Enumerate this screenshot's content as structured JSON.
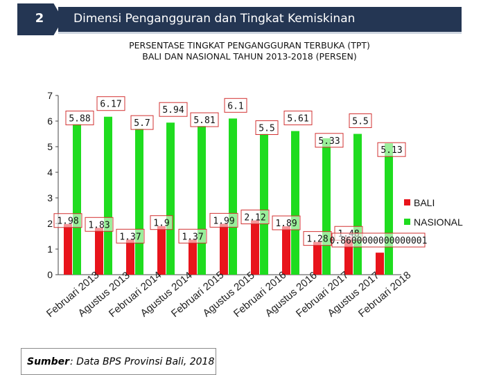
{
  "header": {
    "number": "2",
    "title": "Dimensi Pengangguran dan Tingkat Kemiskinan"
  },
  "source": {
    "label": "Sumber",
    "text": ": Data BPS Provinsi Bali, 2018"
  },
  "colors": {
    "banner": "#243653",
    "bali": "#e8141b",
    "nasional": "#1fdc1f",
    "label_border": "#d23030"
  },
  "chart_data": {
    "type": "bar",
    "title": "PERSENTASE TINGKAT PENGANGGURAN TERBUKA (TPT) BALI DAN NASIONAL TAHUN 2013-2018 (PERSEN)",
    "title_lines": [
      "PERSENTASE TINGKAT PENGANGGURAN TERBUKA (TPT)",
      "BALI DAN NASIONAL TAHUN 2013-2018 (PERSEN)"
    ],
    "categories": [
      "Februari 2013",
      "Agustus 2013",
      "Februari 2014",
      "Agustus 2014",
      "Februari 2015",
      "Agustus 2015",
      "Februari 2016",
      "Agustus 2016",
      "Februari 2017",
      "Agustus 2017",
      "Februari 2018"
    ],
    "series": [
      {
        "name": "BALI",
        "color": "#e8141b",
        "values": [
          1.98,
          1.83,
          1.37,
          1.9,
          1.37,
          1.99,
          2.12,
          1.89,
          1.28,
          1.48,
          0.8600000000000001
        ],
        "labels": [
          "1.98",
          "1.83",
          "1.37",
          "1.9",
          "1.37",
          "1.99",
          "2.12",
          "1.89",
          "1.28",
          "1.48",
          "0.8600000000000001"
        ]
      },
      {
        "name": "NASIONAL",
        "color": "#1fdc1f",
        "values": [
          5.88,
          6.17,
          5.7,
          5.94,
          5.81,
          6.1,
          5.5,
          5.61,
          5.33,
          5.5,
          5.13
        ],
        "labels": [
          "5.88",
          "6.17",
          "5.7",
          "5.94",
          "5.81",
          "6.1",
          "5.5",
          "5.61",
          "5.33",
          "5.5",
          "5.13"
        ]
      }
    ],
    "yticks": [
      "0",
      "1",
      "2",
      "3",
      "4",
      "5",
      "6",
      "7"
    ],
    "ylim": [
      0,
      7
    ],
    "xlabel": "",
    "ylabel": "",
    "grid": false,
    "legend": "right"
  }
}
